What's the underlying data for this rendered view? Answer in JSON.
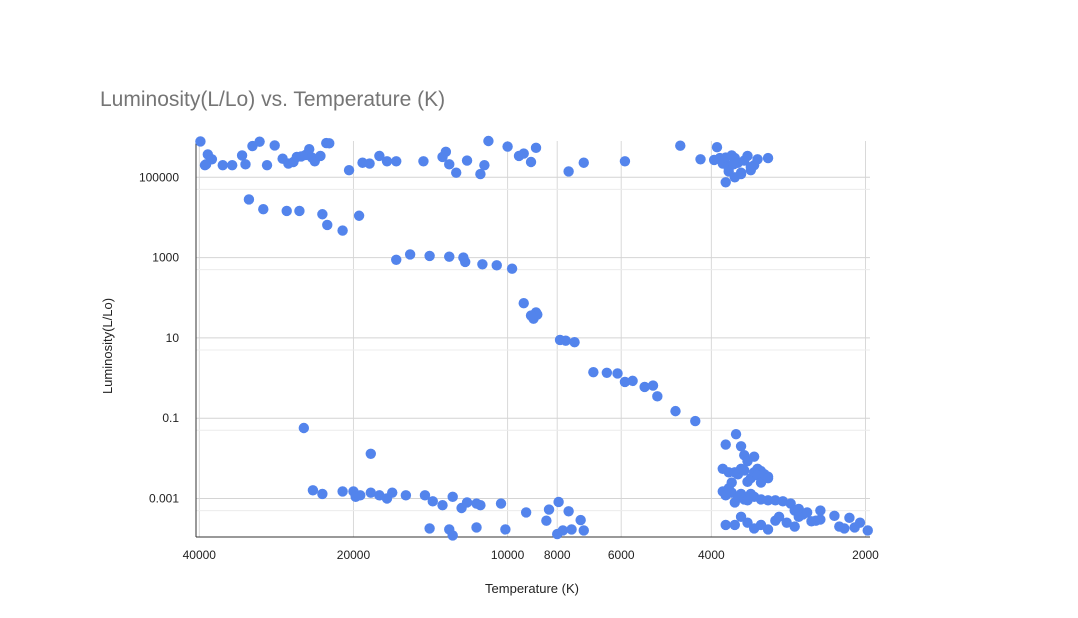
{
  "chart_data": {
    "type": "scatter",
    "title": "Luminosity(L/Lo) vs. Temperature (K)",
    "xlabel": "Temperature (K)",
    "ylabel": "Luminosity(L/Lo)",
    "x_scale": "log",
    "x_reversed": true,
    "y_scale": "log",
    "xlim": [
      40600,
      1960
    ],
    "ylim": [
      0.00011,
      800000
    ],
    "x_ticks": [
      {
        "value": 40000,
        "label": "40000"
      },
      {
        "value": 20000,
        "label": "20000"
      },
      {
        "value": 10000,
        "label": "10000"
      },
      {
        "value": 8000,
        "label": "8000"
      },
      {
        "value": 6000,
        "label": "6000"
      },
      {
        "value": 4000,
        "label": "4000"
      },
      {
        "value": 2000,
        "label": "2000"
      }
    ],
    "y_ticks": [
      {
        "value": 100000,
        "label": "100000"
      },
      {
        "value": 1000,
        "label": "1000"
      },
      {
        "value": 10,
        "label": "10"
      },
      {
        "value": 0.1,
        "label": "0.1"
      },
      {
        "value": 0.001,
        "label": "0.001"
      }
    ],
    "grid": true,
    "legend": "none",
    "color": "#5384ec",
    "series": [
      {
        "points": [
          [
            39800,
            780000
          ],
          [
            38500,
            370000
          ],
          [
            37800,
            280000
          ],
          [
            38800,
            210000
          ],
          [
            39000,
            200000
          ],
          [
            36000,
            200000
          ],
          [
            34500,
            200000
          ],
          [
            33000,
            350000
          ],
          [
            32500,
            210000
          ],
          [
            31500,
            600000
          ],
          [
            30500,
            770000
          ],
          [
            29500,
            200000
          ],
          [
            28500,
            620000
          ],
          [
            27500,
            290000
          ],
          [
            26800,
            220000
          ],
          [
            26200,
            240000
          ],
          [
            25800,
            320000
          ],
          [
            25300,
            330000
          ],
          [
            24800,
            360000
          ],
          [
            24400,
            500000
          ],
          [
            24100,
            310000
          ],
          [
            23800,
            250000
          ],
          [
            23200,
            340000
          ],
          [
            22600,
            710000
          ],
          [
            22300,
            700000
          ],
          [
            20400,
            150000
          ],
          [
            19200,
            230000
          ],
          [
            18600,
            220000
          ],
          [
            17800,
            340000
          ],
          [
            17200,
            250000
          ],
          [
            16500,
            250000
          ],
          [
            14600,
            250000
          ],
          [
            13000,
            210000
          ],
          [
            13400,
            320000
          ],
          [
            13200,
            430000
          ],
          [
            12600,
            130000
          ],
          [
            12000,
            260000
          ],
          [
            11300,
            120000
          ],
          [
            11100,
            200000
          ],
          [
            10900,
            800000
          ],
          [
            10000,
            580000
          ],
          [
            9500,
            340000
          ],
          [
            9300,
            390000
          ],
          [
            9000,
            240000
          ],
          [
            8800,
            540000
          ],
          [
            7600,
            140000
          ],
          [
            7100,
            230000
          ],
          [
            5900,
            250000
          ],
          [
            4600,
            610000
          ],
          [
            4200,
            280000
          ],
          [
            3950,
            270000
          ],
          [
            3900,
            560000
          ],
          [
            3850,
            300000
          ],
          [
            3800,
            220000
          ],
          [
            3750,
            310000
          ],
          [
            3700,
            190000
          ],
          [
            3700,
            140000
          ],
          [
            3650,
            350000
          ],
          [
            3600,
            300000
          ],
          [
            3550,
            230000
          ],
          [
            3500,
            130000
          ],
          [
            3450,
            260000
          ],
          [
            3400,
            340000
          ],
          [
            3350,
            150000
          ],
          [
            3300,
            200000
          ],
          [
            3250,
            280000
          ],
          [
            3100,
            300000
          ],
          [
            3750,
            75000
          ],
          [
            3600,
            100000
          ],
          [
            3500,
            120000
          ],
          [
            3350,
            180000
          ],
          [
            3700,
            170000
          ],
          [
            3620,
            210000
          ],
          [
            32000,
            28000
          ],
          [
            30000,
            16000
          ],
          [
            27000,
            14500
          ],
          [
            25500,
            14500
          ],
          [
            23000,
            12000
          ],
          [
            22500,
            6500
          ],
          [
            21000,
            4700
          ],
          [
            19500,
            11000
          ],
          [
            16500,
            880
          ],
          [
            15500,
            1200
          ],
          [
            14200,
            1100
          ],
          [
            13000,
            1050
          ],
          [
            12100,
            780
          ],
          [
            12200,
            1000
          ],
          [
            11200,
            680
          ],
          [
            10500,
            640
          ],
          [
            9800,
            530
          ],
          [
            9300,
            73
          ],
          [
            8900,
            30
          ],
          [
            8800,
            43
          ],
          [
            8750,
            38
          ],
          [
            9000,
            36
          ],
          [
            7900,
            8.9
          ],
          [
            7700,
            8.5
          ],
          [
            7400,
            7.8
          ],
          [
            6800,
            1.4
          ],
          [
            6400,
            1.35
          ],
          [
            6100,
            1.3
          ],
          [
            5900,
            0.8
          ],
          [
            5700,
            0.85
          ],
          [
            5400,
            0.6
          ],
          [
            5200,
            0.65
          ],
          [
            5100,
            0.35
          ],
          [
            4700,
            0.15
          ],
          [
            4300,
            0.085
          ],
          [
            25000,
            0.057
          ],
          [
            18500,
            0.013
          ],
          [
            24000,
            0.0016
          ],
          [
            23000,
            0.0013
          ],
          [
            21000,
            0.0015
          ],
          [
            20000,
            0.0015
          ],
          [
            19800,
            0.0011
          ],
          [
            19400,
            0.0012
          ],
          [
            18500,
            0.0014
          ],
          [
            17800,
            0.0012
          ],
          [
            17200,
            0.001
          ],
          [
            16800,
            0.0014
          ],
          [
            15800,
            0.0012
          ],
          [
            14500,
            0.0012
          ],
          [
            14000,
            0.00085
          ],
          [
            13400,
            0.00068
          ],
          [
            12800,
            0.0011
          ],
          [
            12300,
            0.00058
          ],
          [
            12000,
            0.0008
          ],
          [
            11500,
            0.00075
          ],
          [
            11300,
            0.00068
          ],
          [
            10300,
            0.00075
          ],
          [
            9200,
            0.00045
          ],
          [
            8300,
            0.00053
          ],
          [
            7950,
            0.00082
          ],
          [
            7600,
            0.00048
          ],
          [
            8400,
            0.00028
          ],
          [
            7200,
            0.00029
          ],
          [
            14200,
            0.00018
          ],
          [
            13000,
            0.00017
          ],
          [
            11500,
            0.00019
          ],
          [
            10100,
            0.00017
          ],
          [
            12800,
            0.00012
          ],
          [
            8000,
            0.00013
          ],
          [
            7800,
            0.00016
          ],
          [
            7500,
            0.00017
          ],
          [
            7100,
            0.00016
          ],
          [
            3750,
            0.022
          ],
          [
            3580,
            0.04
          ],
          [
            3500,
            0.02
          ],
          [
            3450,
            0.012
          ],
          [
            3400,
            0.0085
          ],
          [
            3300,
            0.011
          ],
          [
            3250,
            0.0055
          ],
          [
            3200,
            0.0048
          ],
          [
            3100,
            0.0035
          ],
          [
            3800,
            0.0055
          ],
          [
            3700,
            0.0045
          ],
          [
            3650,
            0.0025
          ],
          [
            3600,
            0.0045
          ],
          [
            3550,
            0.004
          ],
          [
            3500,
            0.0055
          ],
          [
            3450,
            0.005
          ],
          [
            3400,
            0.0026
          ],
          [
            3350,
            0.0032
          ],
          [
            3300,
            0.0045
          ],
          [
            3250,
            0.0038
          ],
          [
            3200,
            0.0025
          ],
          [
            3150,
            0.004
          ],
          [
            3100,
            0.0032
          ],
          [
            3800,
            0.0015
          ],
          [
            3750,
            0.0012
          ],
          [
            3700,
            0.0018
          ],
          [
            3650,
            0.0014
          ],
          [
            3600,
            0.0008
          ],
          [
            3550,
            0.0011
          ],
          [
            3500,
            0.0013
          ],
          [
            3450,
            0.00095
          ],
          [
            3400,
            0.0009
          ],
          [
            3350,
            0.0013
          ],
          [
            3300,
            0.0011
          ],
          [
            3200,
            0.00095
          ],
          [
            3100,
            0.0009
          ],
          [
            3000,
            0.0009
          ],
          [
            2900,
            0.00085
          ],
          [
            2800,
            0.00075
          ],
          [
            2750,
            0.0005
          ],
          [
            2700,
            0.00055
          ],
          [
            2650,
            0.0004
          ],
          [
            3750,
            0.00022
          ],
          [
            3600,
            0.00022
          ],
          [
            3500,
            0.00035
          ],
          [
            3400,
            0.00025
          ],
          [
            3300,
            0.00018
          ],
          [
            3200,
            0.00022
          ],
          [
            3100,
            0.00017
          ],
          [
            3000,
            0.00028
          ],
          [
            2950,
            0.00035
          ],
          [
            2850,
            0.00025
          ],
          [
            2750,
            0.0002
          ],
          [
            2700,
            0.00035
          ],
          [
            2600,
            0.00045
          ],
          [
            2550,
            0.00027
          ],
          [
            2500,
            0.00028
          ],
          [
            2450,
            0.0005
          ],
          [
            2450,
            0.0003
          ],
          [
            2300,
            0.00037
          ],
          [
            2250,
            0.0002
          ],
          [
            2200,
            0.00018
          ],
          [
            2150,
            0.00033
          ],
          [
            2100,
            0.00019
          ],
          [
            2050,
            0.00025
          ],
          [
            1980,
            0.00016
          ]
        ]
      }
    ]
  }
}
